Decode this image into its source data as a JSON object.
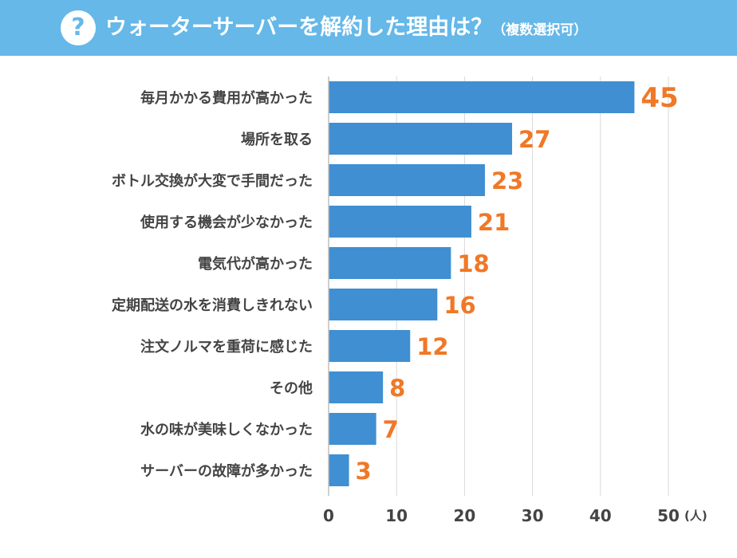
{
  "header": {
    "icon": "question-icon",
    "icon_glyph": "?",
    "title": "ウォーターサーバーを解約した理由は？",
    "note": "（複数選択可）",
    "bg_color": "#65b8e8"
  },
  "chart_data": {
    "type": "bar",
    "orientation": "horizontal",
    "title": "ウォーターサーバーを解約した理由は？（複数選択可）",
    "categories": [
      "毎月かかる費用が高かった",
      "場所を取る",
      "ボトル交換が大変で手間だった",
      "使用する機会が少なかった",
      "電気代が高かった",
      "定期配送の水を消費しきれない",
      "注文ノルマを重荷に感じた",
      "その他",
      "水の味が美味しくなかった",
      "サーバーの故障が多かった"
    ],
    "values": [
      45,
      27,
      23,
      21,
      18,
      16,
      12,
      8,
      7,
      3
    ],
    "value_labels": [
      "45",
      "27",
      "23",
      "21",
      "18",
      "16",
      "12",
      "8",
      "7",
      "3"
    ],
    "xlim": [
      0,
      50
    ],
    "ticks": [
      "0",
      "10",
      "20",
      "30",
      "40",
      "50"
    ],
    "unit": "(人)",
    "xlabel": "",
    "ylabel": "",
    "grid": true,
    "bar_color": "#3f8fd2",
    "value_color": "#f07826",
    "grid_color": "#d9d9d9"
  }
}
